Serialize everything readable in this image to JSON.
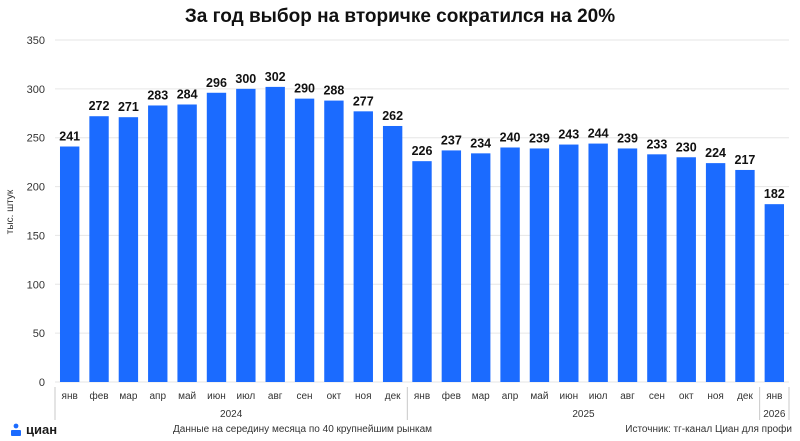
{
  "page": {
    "title": "За год выбор на вторичке сократился на 20%",
    "note": "Данные на середину месяца по 40 крупнейшим рынкам",
    "source": "Источник: тг-канал Циан для профи",
    "logo_text": "циан"
  },
  "colors": {
    "bar": "#1b6bff",
    "grid": "#e6e6e6",
    "text": "#333333",
    "label": "#111111"
  },
  "chart_data": {
    "type": "bar",
    "title": "За год выбор на вторичке сократился на 20%",
    "xlabel": "",
    "ylabel": "тыс. штук",
    "ylim": [
      0,
      350
    ],
    "yticks": [
      0,
      50,
      100,
      150,
      200,
      250,
      300,
      350
    ],
    "grid": true,
    "categories": [
      "янв",
      "фев",
      "мар",
      "апр",
      "май",
      "июн",
      "июл",
      "авг",
      "сен",
      "окт",
      "ноя",
      "дек",
      "янв",
      "фев",
      "мар",
      "апр",
      "май",
      "июн",
      "июл",
      "авг",
      "сен",
      "окт",
      "ноя",
      "дек",
      "янв"
    ],
    "values": [
      241,
      272,
      271,
      283,
      284,
      296,
      300,
      302,
      290,
      288,
      277,
      262,
      226,
      237,
      234,
      240,
      239,
      243,
      244,
      239,
      233,
      230,
      224,
      217,
      182
    ],
    "years": [
      {
        "label": "2024",
        "start": 0,
        "end": 11
      },
      {
        "label": "2025",
        "start": 12,
        "end": 23
      },
      {
        "label": "2026",
        "start": 24,
        "end": 24
      }
    ]
  }
}
